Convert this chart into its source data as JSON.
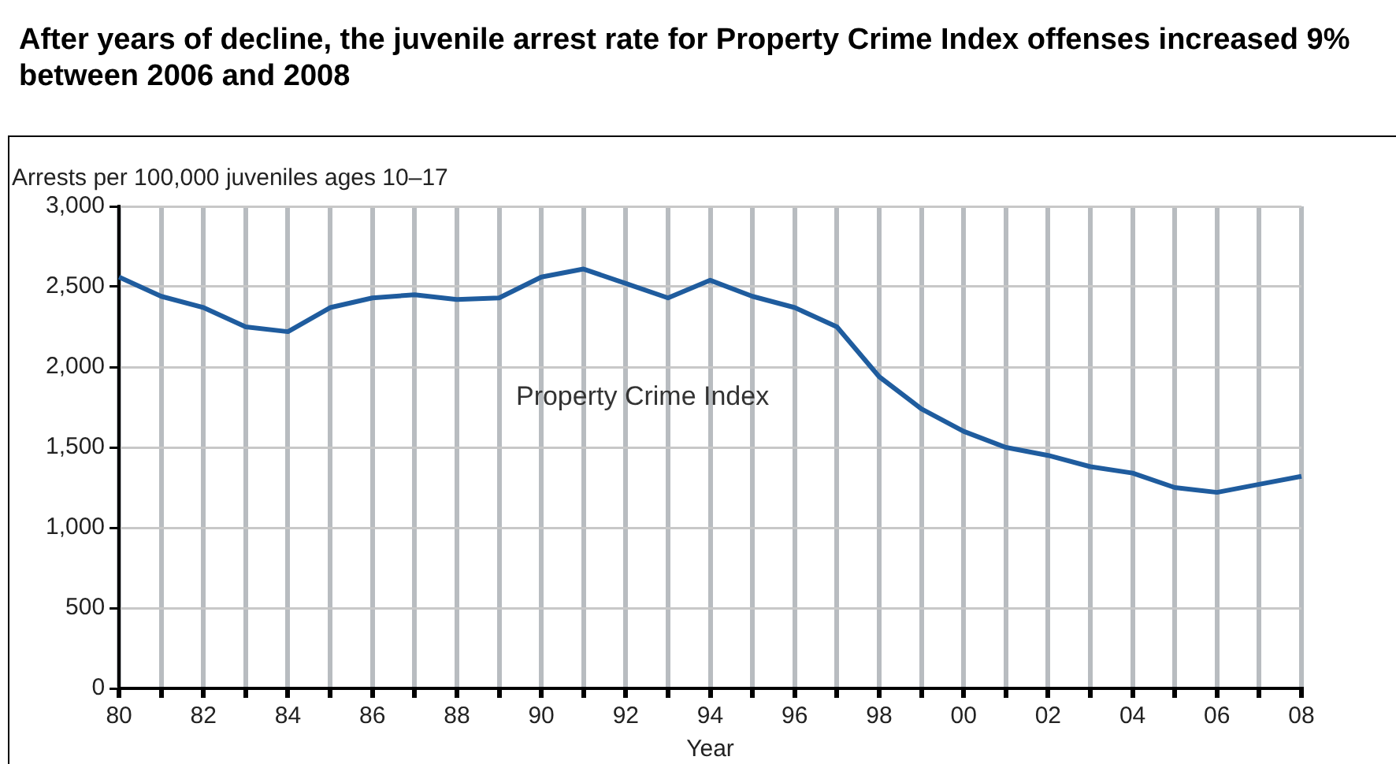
{
  "chart_data": {
    "type": "line",
    "title": "After years of decline, the juvenile arrest rate for Property Crime Index offenses increased 9% between 2006 and 2008",
    "ylabel": "Arrests per 100,000 juveniles ages 10–17",
    "xlabel": "Year",
    "categories": [
      "80",
      null,
      "82",
      null,
      "84",
      null,
      "86",
      null,
      "88",
      null,
      "90",
      null,
      "92",
      null,
      "94",
      null,
      "96",
      null,
      "98",
      null,
      "00",
      null,
      "02",
      null,
      "04",
      null,
      "06",
      null,
      "08"
    ],
    "series": [
      {
        "name": "Property Crime Index",
        "color": "#1f5c9e",
        "values": [
          2560,
          2440,
          2370,
          2250,
          2220,
          2370,
          2430,
          2450,
          2420,
          2430,
          2560,
          2610,
          2520,
          2430,
          2540,
          2440,
          2370,
          2250,
          1940,
          1740,
          1600,
          1500,
          1450,
          1380,
          1340,
          1250,
          1220,
          1270,
          1320
        ]
      }
    ],
    "ylim": [
      0,
      3000
    ],
    "yticks": [
      0,
      500,
      {
        "value": 1000,
        "label": "1,000"
      },
      {
        "value": 1500,
        "label": "1,500"
      },
      {
        "value": 2000,
        "label": "2,000"
      },
      {
        "value": 2500,
        "label": "2,500"
      },
      {
        "value": 3000,
        "label": "3,000"
      }
    ],
    "grid": true,
    "legend": false,
    "marker": "none",
    "line_style": "solid"
  }
}
